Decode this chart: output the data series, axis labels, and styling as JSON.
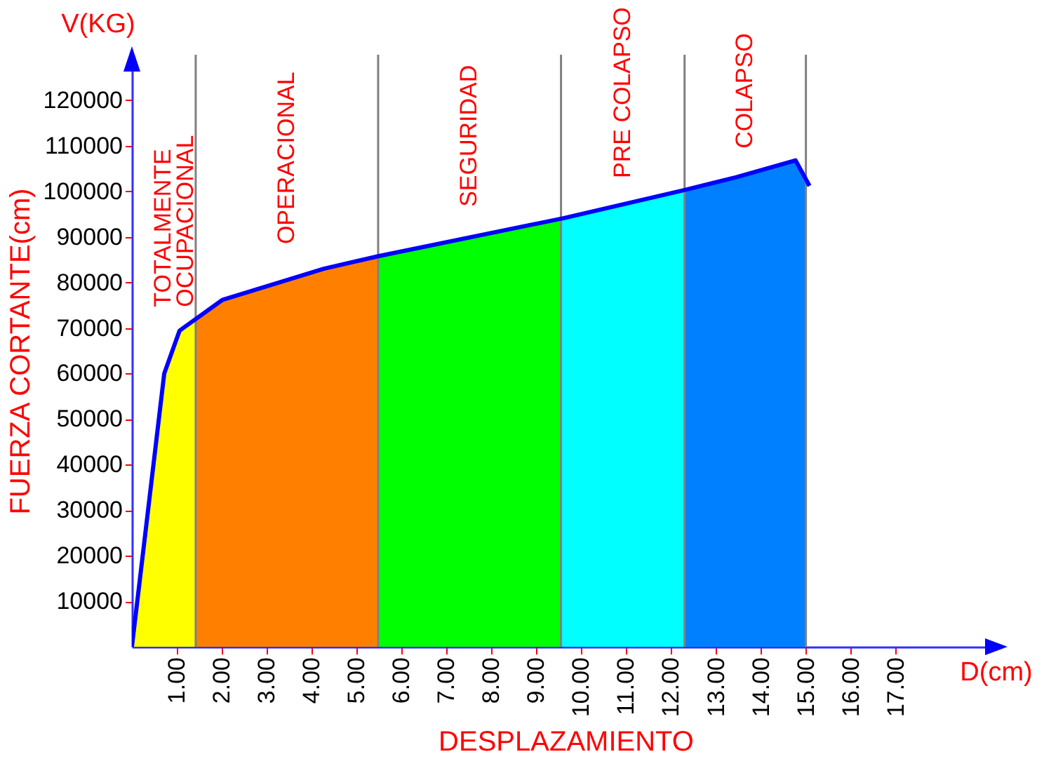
{
  "chart_data": {
    "type": "area",
    "xlabel": "DESPLAZAMIENTO",
    "ylabel": "FUERZA CORTANTE(cm)",
    "annotations": [
      "V(KG)",
      "D(cm)"
    ],
    "xlim": [
      0,
      19.3
    ],
    "ylim": [
      0,
      130000
    ],
    "xticks": [
      {
        "value": 1,
        "label": "1.00"
      },
      {
        "value": 2,
        "label": "2.00"
      },
      {
        "value": 3,
        "label": "3.00"
      },
      {
        "value": 4,
        "label": "4.00"
      },
      {
        "value": 5,
        "label": "5.00"
      },
      {
        "value": 6,
        "label": "6.00"
      },
      {
        "value": 7,
        "label": "7.00"
      },
      {
        "value": 8,
        "label": "8.00"
      },
      {
        "value": 9,
        "label": "9.00"
      },
      {
        "value": 10,
        "label": "10.00"
      },
      {
        "value": 11,
        "label": "11.00"
      },
      {
        "value": 12,
        "label": "12.00"
      },
      {
        "value": 13,
        "label": "13.00"
      },
      {
        "value": 14,
        "label": "14.00"
      },
      {
        "value": 15,
        "label": "15.00"
      },
      {
        "value": 16,
        "label": "16.00"
      },
      {
        "value": 17,
        "label": "17.00"
      }
    ],
    "yticks": [
      10000,
      20000,
      30000,
      40000,
      50000,
      60000,
      70000,
      80000,
      90000,
      100000,
      110000,
      120000
    ],
    "series": [
      {
        "name": "TOTALMENTE OCUPACIONAL",
        "color": "#ffff00",
        "x": [
          0,
          0.72,
          1.06,
          1.42
        ],
        "values": [
          0,
          60000,
          69400,
          72000
        ]
      },
      {
        "name": "OPERACIONAL",
        "color": "#ff8000",
        "x": [
          1.42,
          2.02,
          4.27,
          5.48
        ],
        "values": [
          72000,
          76200,
          83000,
          85800
        ]
      },
      {
        "name": "SEGURIDAD",
        "color": "#00ff00",
        "x": [
          5.48,
          9.55
        ],
        "values": [
          85800,
          94000
        ]
      },
      {
        "name": "PRE COLAPSO",
        "color": "#00ffff",
        "x": [
          9.55,
          12.3
        ],
        "values": [
          94000,
          100300
        ]
      },
      {
        "name": "COLAPSO",
        "color": "#0080ff",
        "x": [
          12.3,
          13.45,
          14.77,
          15.0
        ],
        "values": [
          100300,
          103100,
          106800,
          101500
        ]
      },
      {
        "type": "line",
        "color": "#0000ff",
        "x": [
          0,
          0.72,
          1.06,
          2.02,
          4.27,
          5.5,
          9.6,
          12.3,
          13.45,
          14.77,
          15.08
        ],
        "values": [
          0,
          60000,
          69400,
          76200,
          83000,
          85800,
          94100,
          100300,
          103100,
          106800,
          101200
        ]
      }
    ],
    "ref_lines": [
      {
        "axis": "x",
        "value": 1.42,
        "color": "#808080"
      },
      {
        "axis": "x",
        "value": 5.48,
        "color": "#808080"
      },
      {
        "axis": "x",
        "value": 9.55,
        "color": "#808080"
      },
      {
        "axis": "x",
        "value": 12.3,
        "color": "#808080"
      },
      {
        "axis": "x",
        "value": 15.0,
        "color": "#808080"
      }
    ]
  }
}
